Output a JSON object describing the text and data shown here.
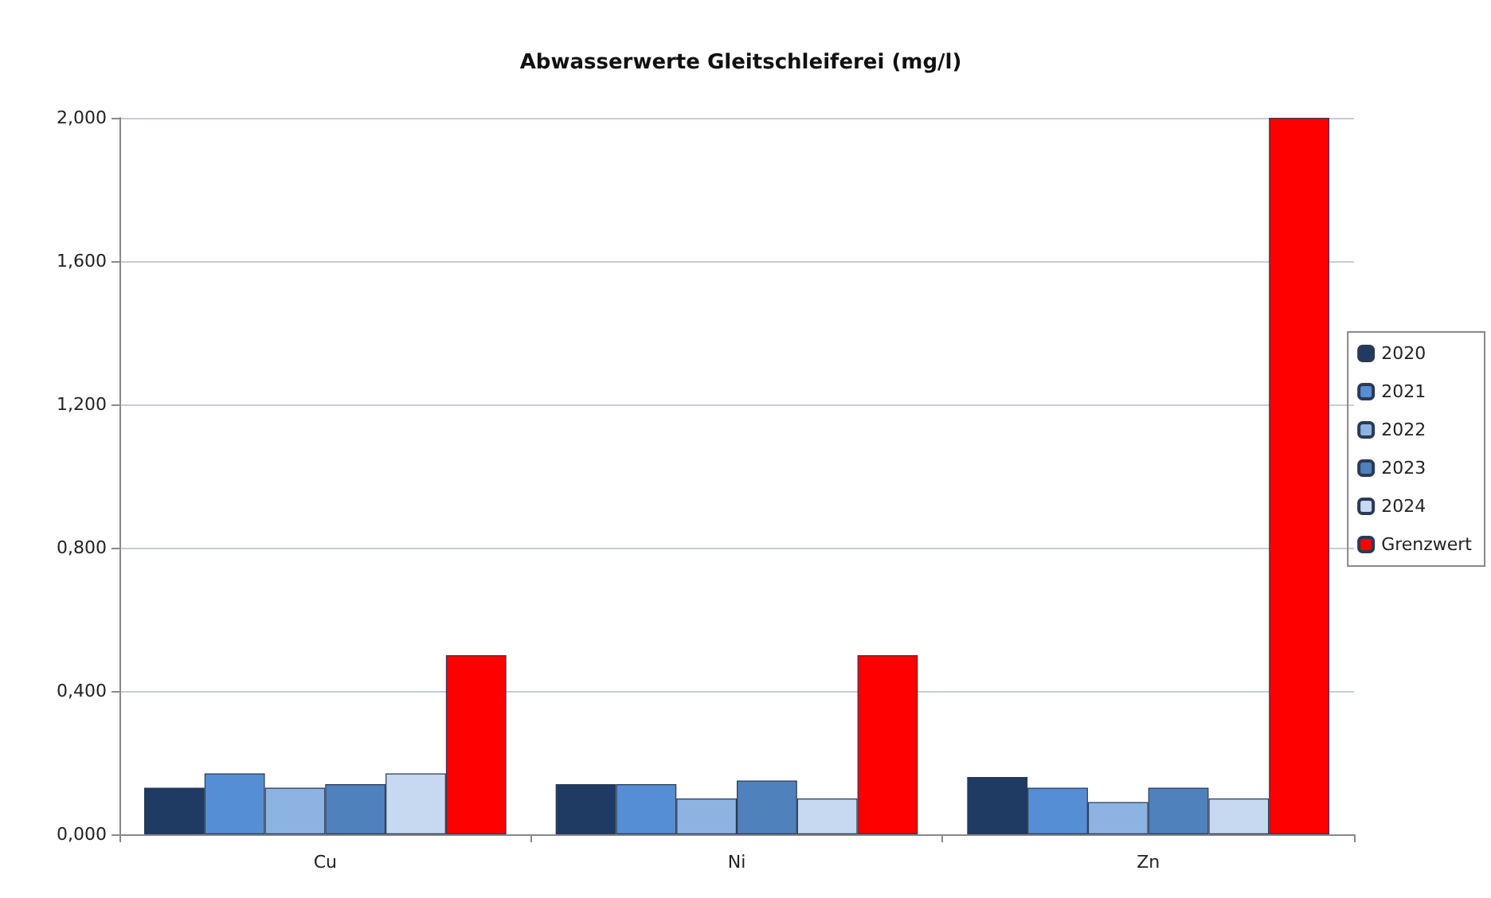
{
  "chart_data": {
    "type": "bar",
    "title": "Abwasserwerte Gleitschleiferei (mg/l)",
    "categories": [
      "Cu",
      "Ni",
      "Zn"
    ],
    "series": [
      {
        "name": "2020",
        "color": "#1f3b63",
        "values": [
          0.13,
          0.14,
          0.16
        ]
      },
      {
        "name": "2021",
        "color": "#558ed5",
        "values": [
          0.17,
          0.14,
          0.13
        ]
      },
      {
        "name": "2022",
        "color": "#8db3e2",
        "values": [
          0.13,
          0.1,
          0.09
        ]
      },
      {
        "name": "2023",
        "color": "#4f81bd",
        "values": [
          0.14,
          0.15,
          0.13
        ]
      },
      {
        "name": "2024",
        "color": "#c6d9f1",
        "values": [
          0.17,
          0.1,
          0.1
        ]
      },
      {
        "name": "Grenzwert",
        "color": "#ff0000",
        "values": [
          0.5,
          0.5,
          2.0
        ]
      }
    ],
    "ylim": [
      0,
      2
    ],
    "yticks": [
      {
        "value": 0,
        "label": "0,000"
      },
      {
        "value": 0.4,
        "label": "0,400"
      },
      {
        "value": 0.8,
        "label": "0,800"
      },
      {
        "value": 1.2,
        "label": "1,200"
      },
      {
        "value": 1.6,
        "label": "1,600"
      },
      {
        "value": 2,
        "label": "2,000"
      }
    ],
    "grid": "y",
    "legend": "right"
  }
}
